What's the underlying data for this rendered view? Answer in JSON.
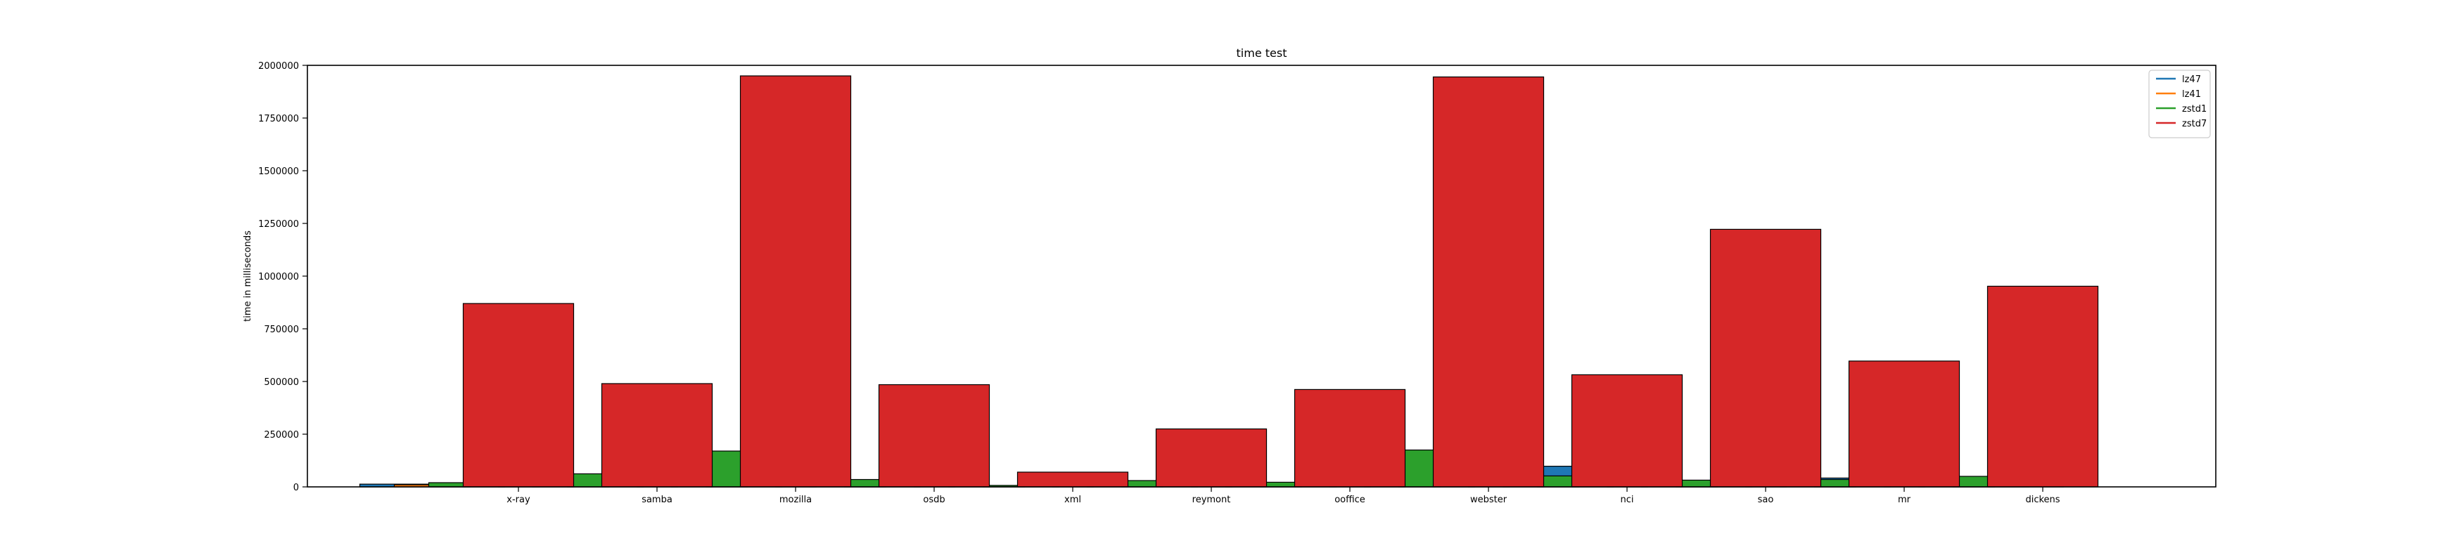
{
  "chart_data": {
    "type": "bar",
    "title": "time test",
    "xlabel": "",
    "ylabel": "time in milliseconds",
    "categories": [
      "x-ray",
      "samba",
      "mozilla",
      "osdb",
      "xml",
      "reymont",
      "ooffice",
      "webster",
      "nci",
      "sao",
      "mr",
      "dickens"
    ],
    "ylim": [
      0,
      2000000
    ],
    "yticks": [
      0,
      250000,
      500000,
      750000,
      1000000,
      1250000,
      1500000,
      1750000,
      2000000
    ],
    "ytick_labels": [
      "0",
      "250000",
      "500000",
      "750000",
      "1000000",
      "1250000",
      "1500000",
      "1750000",
      "2000000"
    ],
    "legend_position": "top-right",
    "grid": false,
    "series": [
      {
        "name": "lz47",
        "color": "#1f77b4",
        "values": [
          13000,
          8000,
          10000,
          3000,
          2000,
          3000,
          6000,
          10000,
          98000,
          8000,
          42000,
          6000
        ]
      },
      {
        "name": "lz41",
        "color": "#ff7f0e",
        "values": [
          10000,
          7000,
          8000,
          2500,
          1500,
          2500,
          5000,
          8000,
          9000,
          6000,
          7000,
          5000
        ]
      },
      {
        "name": "zstd1",
        "color": "#2ca02c",
        "values": [
          20000,
          62000,
          170000,
          35000,
          7000,
          30000,
          22000,
          175000,
          52000,
          32000,
          35000,
          50000
        ]
      },
      {
        "name": "zstd7",
        "color": "#d62728",
        "values": [
          870000,
          490000,
          1950000,
          485000,
          70000,
          275000,
          462000,
          1945000,
          532000,
          1222000,
          597000,
          952000
        ]
      }
    ]
  }
}
